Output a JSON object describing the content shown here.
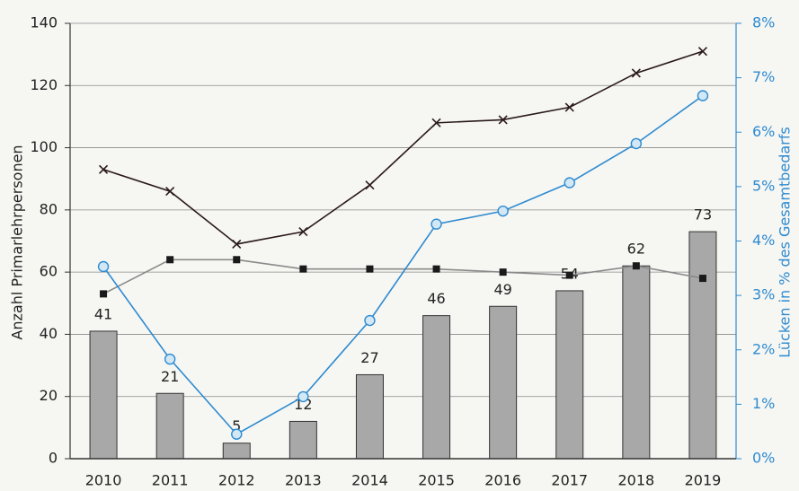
{
  "chart_data": {
    "type": "bar",
    "y_label": "Anzahl Primarlehrpersonen",
    "y2_label": "Lücken in % des Gesamtbedarfs",
    "categories": [
      "2010",
      "2011",
      "2012",
      "2013",
      "2014",
      "2015",
      "2016",
      "2017",
      "2018",
      "2019"
    ],
    "ylim": [
      0,
      140
    ],
    "yticks": [
      0,
      20,
      40,
      60,
      80,
      100,
      120,
      140
    ],
    "y2lim": [
      0,
      8
    ],
    "y2ticks": [
      {
        "value": 0,
        "label": "0%"
      },
      {
        "value": 1,
        "label": "1%"
      },
      {
        "value": 2,
        "label": "2%"
      },
      {
        "value": 3,
        "label": "3%"
      },
      {
        "value": 4,
        "label": "4%"
      },
      {
        "value": 5,
        "label": "5%"
      },
      {
        "value": 6,
        "label": "6%"
      },
      {
        "value": 7,
        "label": "7%"
      },
      {
        "value": 8,
        "label": "8%"
      }
    ],
    "grid": true,
    "series": [
      {
        "type": "bar",
        "color": "#a8a8a8",
        "values": [
          41,
          21,
          5,
          12,
          27,
          46,
          49,
          54,
          62,
          73
        ]
      },
      {
        "type": "line",
        "marker": "x",
        "color": "#2a1a1a",
        "values": [
          93,
          86,
          69,
          73,
          88,
          108,
          109,
          113,
          124,
          131
        ]
      },
      {
        "type": "line",
        "marker": "square",
        "color": "#8a8a8a",
        "values": [
          53,
          64,
          64,
          61,
          61,
          61,
          60,
          59,
          62,
          58
        ]
      },
      {
        "type": "line",
        "marker": "circle",
        "axis": "y2",
        "color": "#2e8bd0",
        "values": [
          3.53,
          1.83,
          0.45,
          1.14,
          2.54,
          4.31,
          4.55,
          5.07,
          5.79,
          6.67
        ]
      }
    ]
  }
}
